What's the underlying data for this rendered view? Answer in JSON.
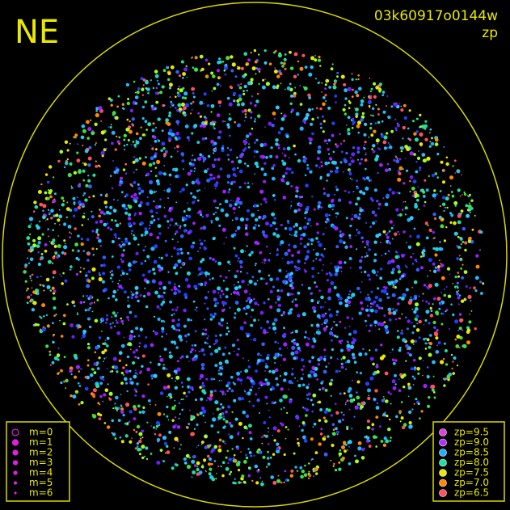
{
  "header": {
    "direction": "NE",
    "frame_id": "03k60917o0144w",
    "mode": "zp"
  },
  "magnitude_legend": {
    "entries": [
      "m=0",
      "m=1",
      "m=2",
      "m=3",
      "m=4",
      "m=5",
      "m=6"
    ],
    "color": "#e020e0"
  },
  "zeropoint_legend": {
    "entries": [
      {
        "label": "zp=9.5",
        "color": "#e040e0"
      },
      {
        "label": "zp=9.0",
        "color": "#b030ff"
      },
      {
        "label": "zp=8.5",
        "color": "#20b0ff"
      },
      {
        "label": "zp=8.0",
        "color": "#20e0a0"
      },
      {
        "label": "zp=7.5",
        "color": "#e8e800"
      },
      {
        "label": "zp=7.0",
        "color": "#ff8800"
      },
      {
        "label": "zp=6.5",
        "color": "#ff5060"
      }
    ]
  }
}
